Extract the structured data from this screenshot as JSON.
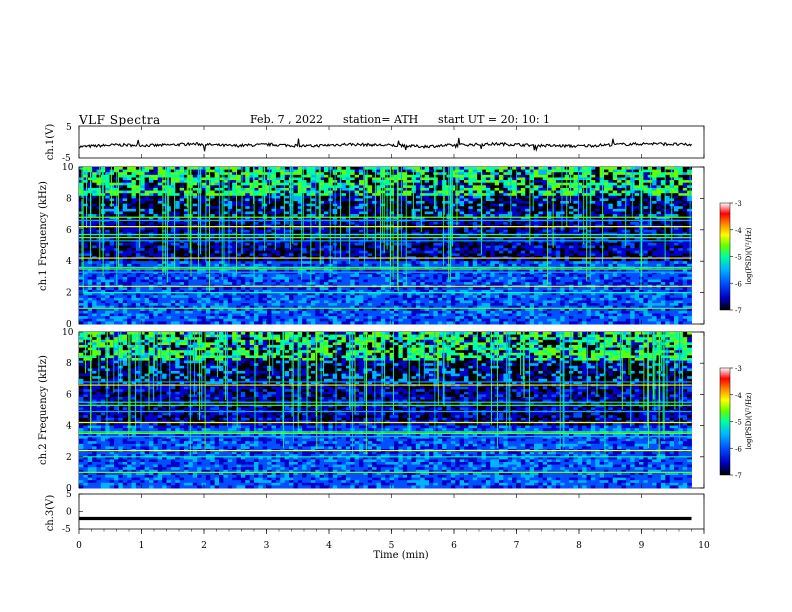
{
  "header": {
    "title": "VLF  Spectra",
    "date": "Feb. 7  , 2022",
    "station": "station= ATH",
    "start_ut": "start  UT  =    20: 10: 1"
  },
  "colors": {
    "waveform": "#000000",
    "colormap": [
      "#000000",
      "#0000c8",
      "#0050ff",
      "#00b4ff",
      "#00ffa0",
      "#64ff00",
      "#ffff00",
      "#ff8c00",
      "#ff0000",
      "#ffffff"
    ]
  },
  "chart_data": [
    {
      "type": "line",
      "ylabel": "ch.1(V)",
      "xlabel": "",
      "xlim": [
        0,
        10
      ],
      "ylim": [
        -5,
        5
      ],
      "y_ticks": [
        5,
        -5
      ],
      "x_end": 9.8,
      "series": [
        {
          "description": "noisy waveform fluctuating around -1 V",
          "values": [
            -1.5,
            -0.9,
            -1.1,
            -0.6,
            -1.2,
            -0.8,
            -1.3,
            -0.7,
            -1.0,
            -1.4,
            -0.9,
            -0.6,
            -1.1,
            -1.3,
            -0.8,
            -0.5,
            -0.9
          ]
        }
      ]
    },
    {
      "type": "heatmap",
      "ylabel": "ch.1 Frequency  (kHz)",
      "xlim": [
        0,
        10
      ],
      "ylim": [
        0,
        10
      ],
      "y_ticks": [
        0,
        2,
        4,
        6,
        8,
        10
      ],
      "colorbar": {
        "label": "log(PSD)(V²/Hz)",
        "range": [
          -7,
          -3
        ],
        "ticks": [
          "-3",
          "-4",
          "-5",
          "-6",
          "-7"
        ]
      },
      "narrowband_lines_khz": [
        1.0,
        2.0,
        2.4,
        3.3,
        3.5,
        3.6,
        4.2,
        5.3,
        5.5,
        5.7,
        6.2,
        6.6,
        6.8
      ]
    },
    {
      "type": "heatmap",
      "ylabel": "ch.2 Frequency  (kHz)",
      "xlim": [
        0,
        10
      ],
      "ylim": [
        0,
        10
      ],
      "y_ticks": [
        0,
        2,
        4,
        6,
        8,
        10
      ],
      "colorbar": {
        "label": "log(PSD)(V²/Hz)",
        "range": [
          -7,
          -3
        ],
        "ticks": [
          "-3",
          "-4",
          "-5",
          "-6",
          "-7"
        ]
      },
      "narrowband_lines_khz": [
        1.0,
        2.0,
        2.4,
        3.3,
        3.5,
        3.6,
        4.2,
        4.9,
        5.3,
        5.5,
        6.6,
        6.8
      ]
    },
    {
      "type": "line",
      "ylabel": "ch.3(V)",
      "xlabel": "Time  (min)",
      "xlim": [
        0,
        10
      ],
      "ylim": [
        -5,
        5
      ],
      "y_ticks": [
        5,
        0,
        -5
      ],
      "x_ticks": [
        0,
        1,
        2,
        3,
        4,
        5,
        6,
        7,
        8,
        9,
        10
      ],
      "x_end": 9.8,
      "series": [
        {
          "description": "flat line near -2 V",
          "values": [
            -2,
            -2,
            -2,
            -2,
            -2,
            -2,
            -2,
            -2,
            -2,
            -2,
            -2
          ]
        }
      ]
    }
  ]
}
